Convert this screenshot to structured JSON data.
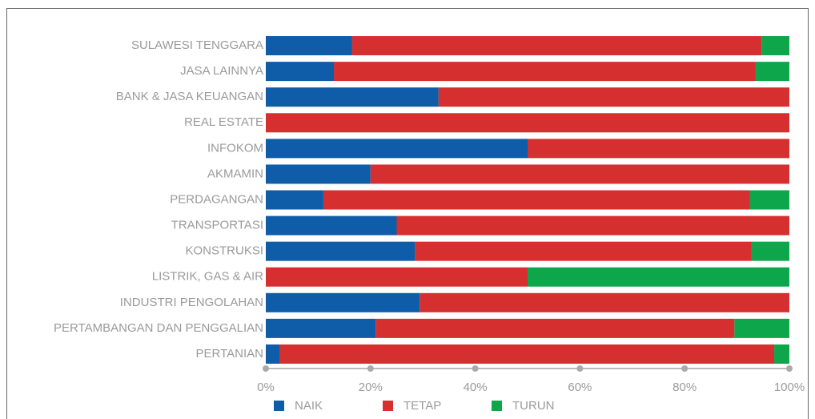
{
  "chart_data": {
    "type": "stacked_bar_horizontal",
    "categories": [
      "SULAWESI TENGGARA",
      "JASA LAINNYA",
      "BANK & JASA KEUANGAN",
      "REAL ESTATE",
      "INFOKOM",
      "AKMAMIN",
      "PERDAGANGAN",
      "TRANSPORTASI",
      "KONSTRUKSI",
      "LISTRIK, GAS & AIR",
      "INDUSTRI PENGOLAHAN",
      "PERTAMBANGAN DAN PENGGALIAN",
      "PERTANIAN"
    ],
    "series": [
      {
        "name": "NAIK",
        "color": "#0f5ca8",
        "values": [
          16.5,
          13,
          33,
          0,
          50,
          20,
          11,
          25,
          28.5,
          0,
          29.4,
          21,
          2.6
        ]
      },
      {
        "name": "TETAP",
        "color": "#d62f30",
        "values": [
          78.2,
          80.5,
          67,
          100,
          50,
          80,
          81.5,
          75,
          64.3,
          50,
          70.6,
          68.5,
          94.5
        ]
      },
      {
        "name": "TURUN",
        "color": "#0ea64a",
        "values": [
          5.3,
          6.5,
          0,
          0,
          0,
          0,
          7.5,
          0,
          7.2,
          50,
          0,
          10.5,
          2.9
        ]
      }
    ],
    "xlim": [
      0,
      100
    ],
    "xticks": [
      {
        "value": 0,
        "label": "0%"
      },
      {
        "value": 20,
        "label": "20%"
      },
      {
        "value": 40,
        "label": "40%"
      },
      {
        "value": 60,
        "label": "60%"
      },
      {
        "value": 80,
        "label": "80%"
      },
      {
        "value": 100,
        "label": "100%"
      }
    ],
    "legend": "bottom"
  }
}
